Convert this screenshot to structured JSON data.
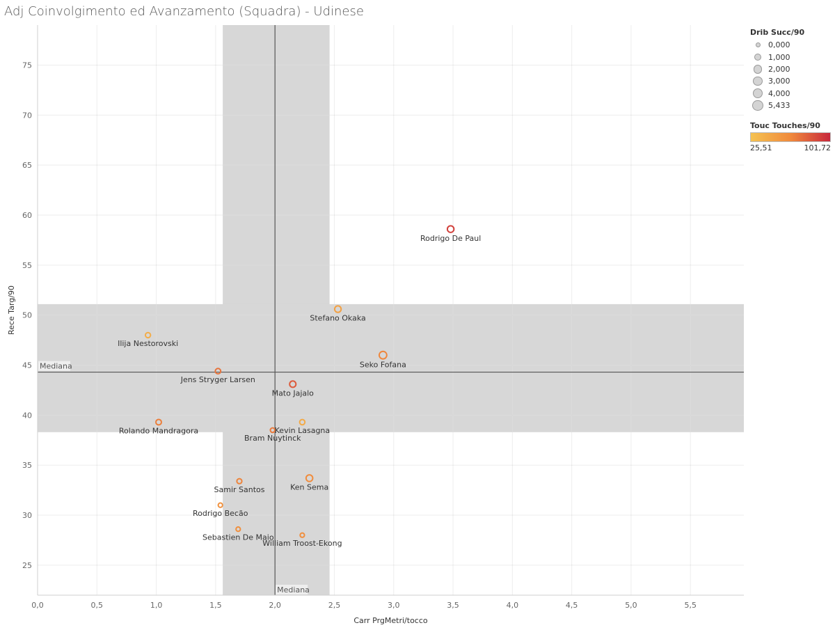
{
  "title": "Adj Coinvolgimento ed Avanzamento (Squadra) - Udinese",
  "colors": {
    "band": "#d7d7d7",
    "grid": "#ebebeb",
    "scale_low": "#f5c251",
    "scale_mid": "#f08a3c",
    "scale_high": "#c8283c"
  },
  "legend": {
    "size_title": "Drib Succ/90",
    "size_items": [
      "0,000",
      "1,000",
      "2,000",
      "3,000",
      "4,000",
      "5,433"
    ],
    "color_title": "Touc Touches/90",
    "color_min": "25,51",
    "color_max": "101,72"
  },
  "chart_data": {
    "type": "scatter",
    "title": "Adj Coinvolgimento ed Avanzamento (Squadra) - Udinese",
    "xlabel": "Carr PrgMetri/tocco",
    "ylabel": "Rece Targ/90",
    "xlim": [
      0,
      5.95
    ],
    "ylim": [
      22,
      79
    ],
    "x_ticks": [
      0,
      0.5,
      1.0,
      1.5,
      2.0,
      2.5,
      3.0,
      3.5,
      4.0,
      4.5,
      5.0,
      5.5
    ],
    "x_tick_labels": [
      "0,0",
      "0,5",
      "1,0",
      "1,5",
      "2,0",
      "2,5",
      "3,0",
      "3,5",
      "4,0",
      "4,5",
      "5,0",
      "5,5"
    ],
    "y_ticks": [
      25,
      30,
      35,
      40,
      45,
      50,
      55,
      60,
      65,
      70,
      75
    ],
    "y_tick_labels": [
      "25",
      "30",
      "35",
      "40",
      "45",
      "50",
      "55",
      "60",
      "65",
      "70",
      "75"
    ],
    "grid": true,
    "reference_lines": {
      "x_median": 2.0,
      "y_median": 44.3,
      "label": "Mediana"
    },
    "bands": {
      "x_range": [
        1.56,
        2.46
      ],
      "y_range": [
        38.3,
        51.1
      ]
    },
    "size_field": "Drib Succ/90",
    "color_field": "Touc Touches/90",
    "size_range": [
      0,
      5.433
    ],
    "color_range": [
      25.51,
      101.72
    ],
    "points": [
      {
        "label": "Rodrigo De Paul",
        "x": 3.48,
        "y": 58.6,
        "size": 2.3,
        "color": 92
      },
      {
        "label": "Stefano Okaka",
        "x": 2.53,
        "y": 50.6,
        "size": 2.2,
        "color": 48
      },
      {
        "label": "Ilija Nestorovski",
        "x": 0.93,
        "y": 48.0,
        "size": 0.9,
        "color": 40
      },
      {
        "label": "Seko Fofana",
        "x": 2.91,
        "y": 46.0,
        "size": 3.6,
        "color": 65
      },
      {
        "label": "Jens Stryger Larsen",
        "x": 1.52,
        "y": 44.4,
        "size": 1.1,
        "color": 72
      },
      {
        "label": "Mato Jajalo",
        "x": 2.15,
        "y": 43.1,
        "size": 2.0,
        "color": 82
      },
      {
        "label": "Rolando Mandragora",
        "x": 1.02,
        "y": 39.3,
        "size": 1.2,
        "color": 68
      },
      {
        "label": "Kevin Lasagna",
        "x": 2.23,
        "y": 39.3,
        "size": 1.0,
        "color": 42
      },
      {
        "label": "Bram Nuytinck",
        "x": 1.98,
        "y": 38.5,
        "size": 0.5,
        "color": 70
      },
      {
        "label": "Ken Sema",
        "x": 2.29,
        "y": 33.7,
        "size": 2.4,
        "color": 62
      },
      {
        "label": "Samir Santos",
        "x": 1.7,
        "y": 33.4,
        "size": 0.8,
        "color": 66
      },
      {
        "label": "Rodrigo Becão",
        "x": 1.54,
        "y": 31.0,
        "size": 0.4,
        "color": 58
      },
      {
        "label": "Sebastien De Maio",
        "x": 1.69,
        "y": 28.6,
        "size": 0.4,
        "color": 60
      },
      {
        "label": "William Troost-Ekong",
        "x": 2.23,
        "y": 28.0,
        "size": 0.4,
        "color": 60
      }
    ]
  }
}
